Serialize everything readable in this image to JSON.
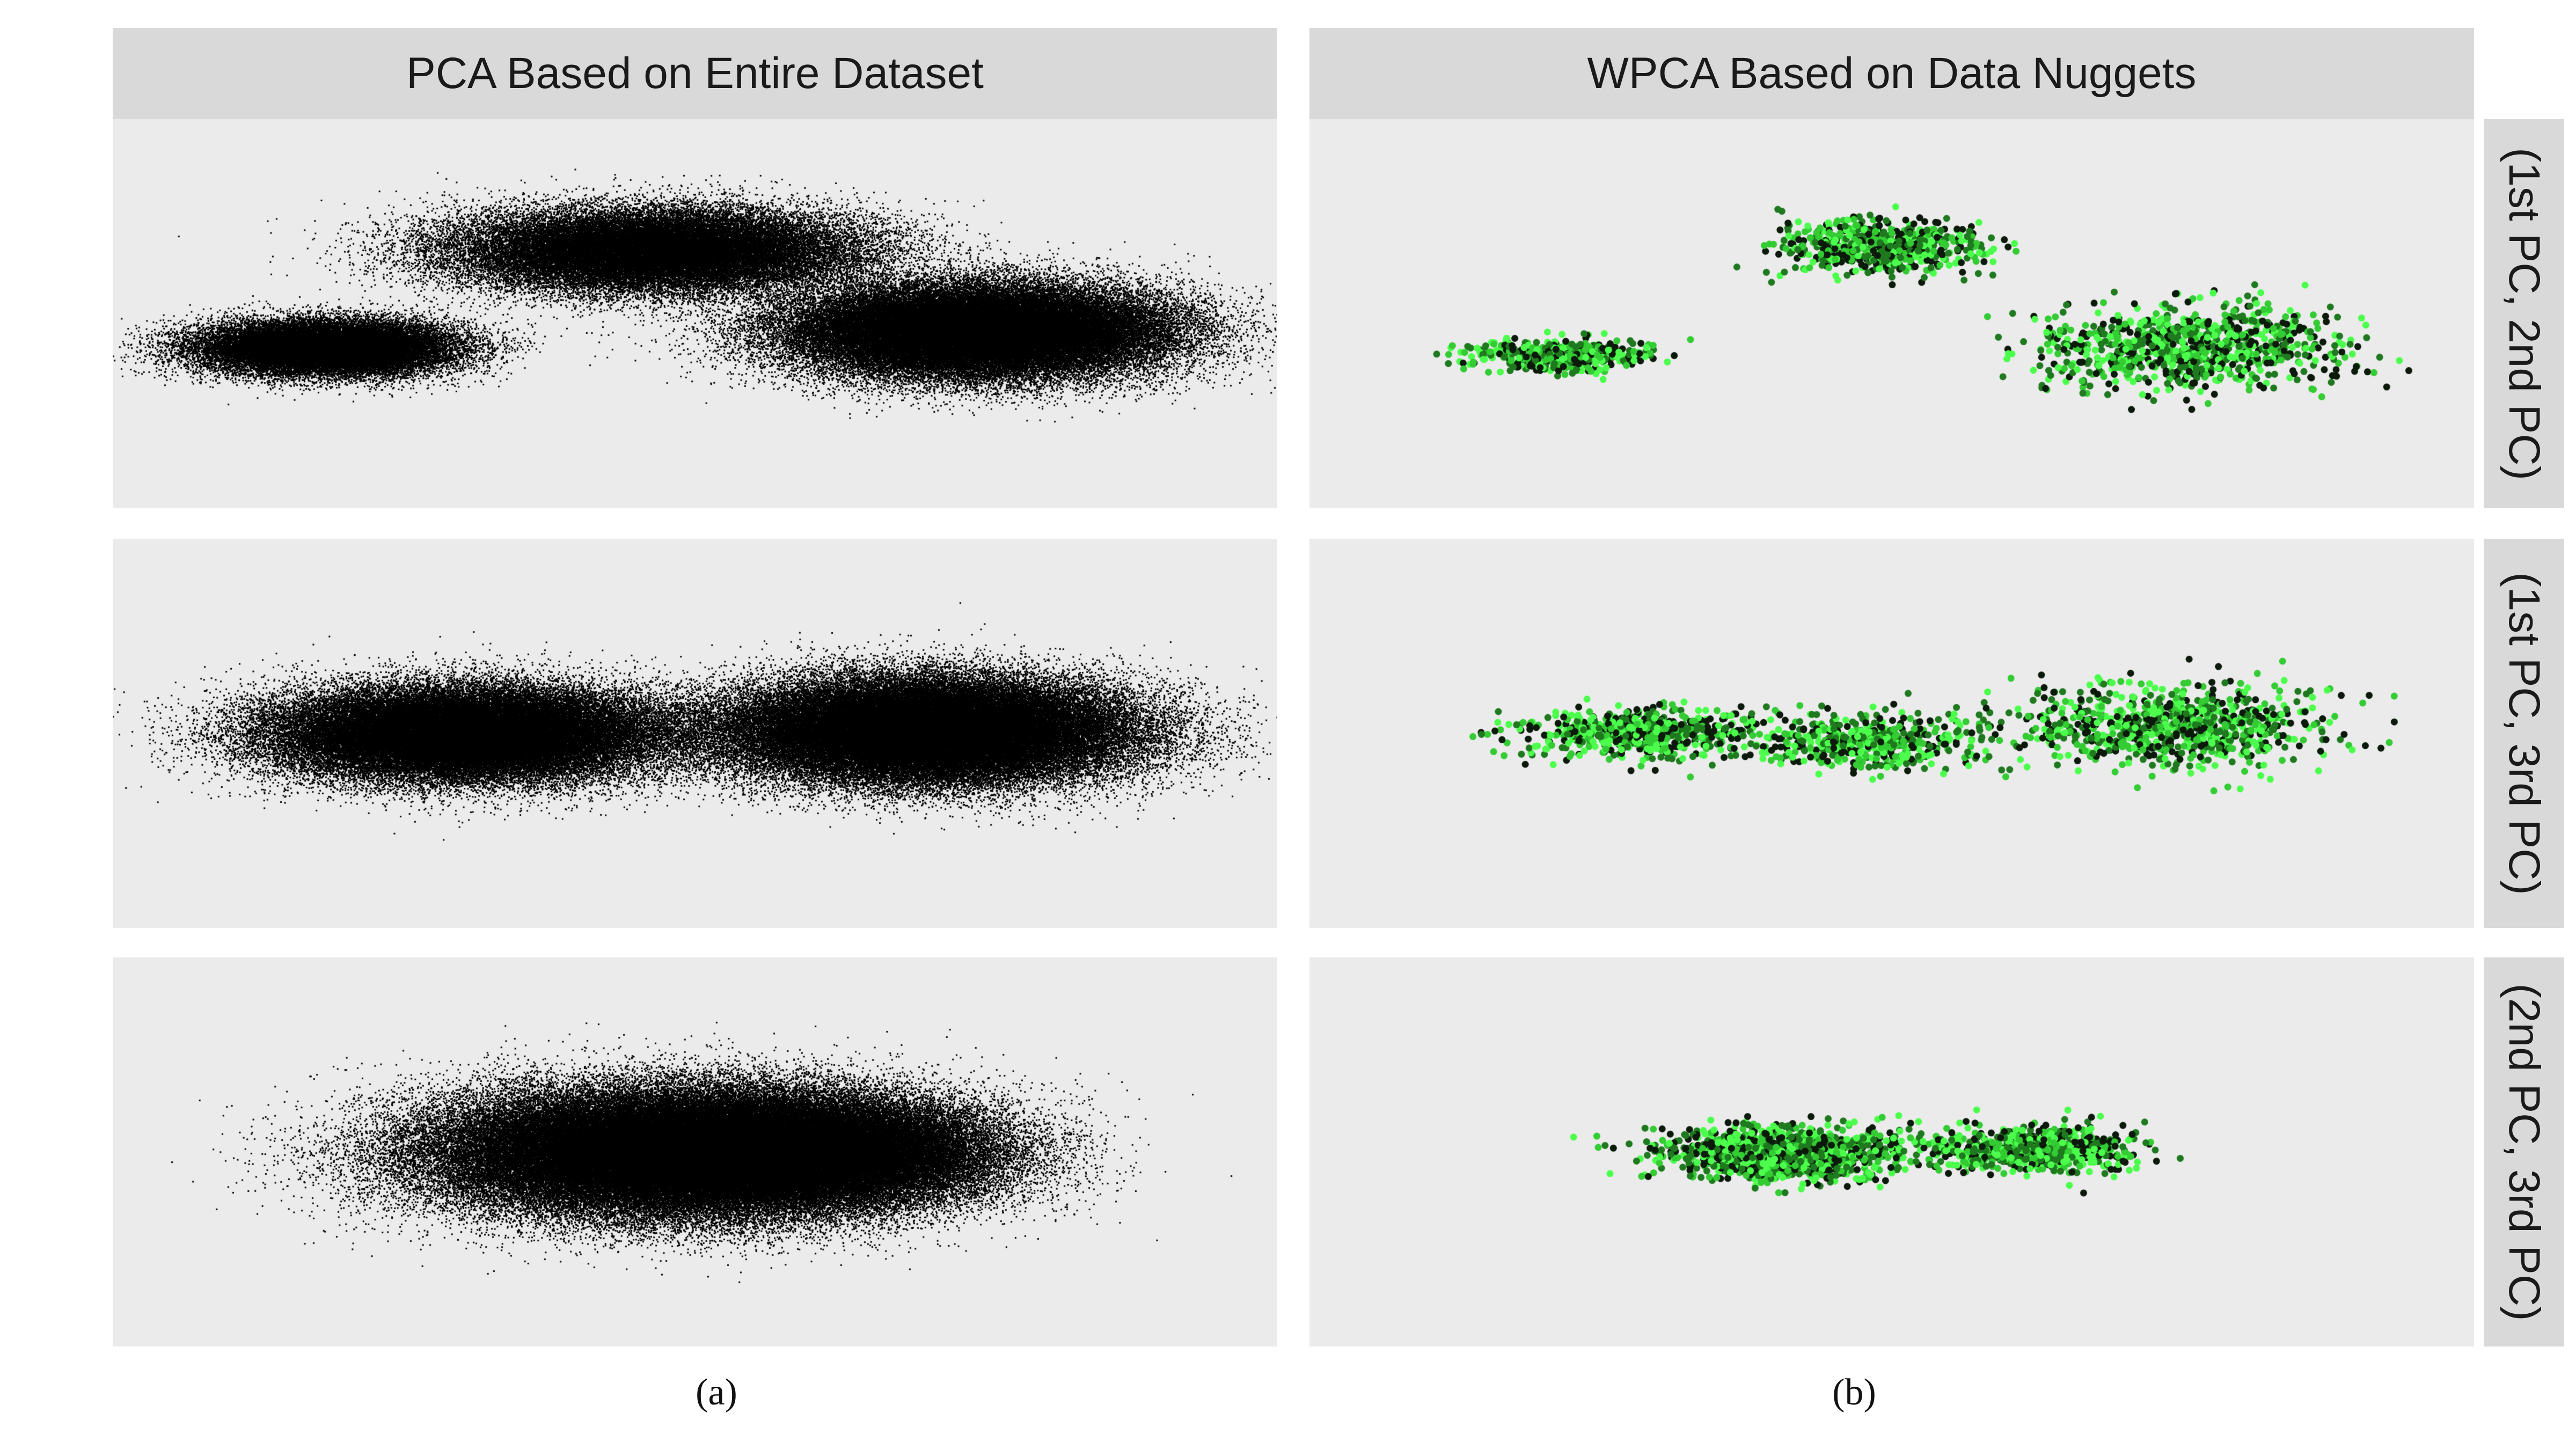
{
  "figure": {
    "column_titles": [
      "PCA Based on Entire Dataset",
      "WPCA Based on Data Nuggets"
    ],
    "row_labels": [
      "(1st PC, 2nd PC)",
      "(1st PC, 3rd PC)",
      "(2nd PC, 3rd PC)"
    ],
    "captions": [
      "(a)",
      "(b)"
    ]
  },
  "colors": {
    "panel_bg": "#ebebeb",
    "strip_bg": "#d9d9d9",
    "full_data_points": "#000000",
    "nugget_gradient": [
      "#0b1a0b",
      "#1f7a1f",
      "#33cc33",
      "#4cff4c"
    ]
  },
  "chart_data": {
    "type": "scatter",
    "layout": "faceted 3 x 2 grid (rows = PC pairs, columns = method)",
    "axes": "unlabeled, no ticks",
    "grid": "off",
    "legend": "none",
    "facets": [
      {
        "row": "(1st PC, 2nd PC)",
        "column": "PCA Based on Entire Dataset",
        "point_color": "#000000",
        "points": "dense (full dataset)",
        "clusters": [
          {
            "center": [
              -0.72,
              -0.2
            ],
            "spread": [
              0.2,
              0.13
            ],
            "weight": 0.22
          },
          {
            "center": [
              -0.08,
              0.38
            ],
            "spread": [
              0.32,
              0.2
            ],
            "weight": 0.3
          },
          {
            "center": [
              0.55,
              -0.1
            ],
            "spread": [
              0.3,
              0.22
            ],
            "weight": 0.48
          }
        ]
      },
      {
        "row": "(1st PC, 2nd PC)",
        "column": "WPCA Based on Data Nuggets",
        "point_color": "#000000 to #4cff4c",
        "points": "about 2000 data nuggets",
        "clusters": [
          {
            "center": [
              -0.65,
              -0.25
            ],
            "spread": [
              0.14,
              0.08
            ],
            "weight": 0.25
          },
          {
            "center": [
              -0.02,
              0.4
            ],
            "spread": [
              0.17,
              0.13
            ],
            "weight": 0.3
          },
          {
            "center": [
              0.58,
              -0.2
            ],
            "spread": [
              0.25,
              0.22
            ],
            "weight": 0.45
          }
        ]
      },
      {
        "row": "(1st PC, 3rd PC)",
        "column": "PCA Based on Entire Dataset",
        "point_color": "#000000",
        "points": "dense (full dataset)",
        "clusters": [
          {
            "center": [
              -0.45,
              0.0
            ],
            "spread": [
              0.3,
              0.22
            ],
            "weight": 0.45
          },
          {
            "center": [
              0.45,
              0.02
            ],
            "spread": [
              0.32,
              0.25
            ],
            "weight": 0.55
          }
        ]
      },
      {
        "row": "(1st PC, 3rd PC)",
        "column": "WPCA Based on Data Nuggets",
        "point_color": "#000000 to #4cff4c",
        "points": "about 2000 data nuggets",
        "clusters": [
          {
            "center": [
              -0.5,
              0.0
            ],
            "spread": [
              0.2,
              0.12
            ],
            "weight": 0.3
          },
          {
            "center": [
              -0.05,
              -0.05
            ],
            "spread": [
              0.18,
              0.14
            ],
            "weight": 0.25
          },
          {
            "center": [
              0.55,
              0.05
            ],
            "spread": [
              0.25,
              0.2
            ],
            "weight": 0.45
          }
        ]
      },
      {
        "row": "(2nd PC, 3rd PC)",
        "column": "PCA Based on Entire Dataset",
        "point_color": "#000000",
        "points": "dense (full dataset)",
        "clusters": [
          {
            "center": [
              -0.05,
              0.0
            ],
            "spread": [
              0.38,
              0.3
            ],
            "weight": 0.7
          },
          {
            "center": [
              0.25,
              0.0
            ],
            "spread": [
              0.28,
              0.26
            ],
            "weight": 0.3
          }
        ]
      },
      {
        "row": "(2nd PC, 3rd PC)",
        "column": "WPCA Based on Data Nuggets",
        "point_color": "#000000 to #4cff4c",
        "points": "about 2000 data nuggets",
        "clusters": [
          {
            "center": [
              -0.2,
              0.0
            ],
            "spread": [
              0.2,
              0.13
            ],
            "weight": 0.6
          },
          {
            "center": [
              0.28,
              0.02
            ],
            "spread": [
              0.16,
              0.11
            ],
            "weight": 0.4
          }
        ]
      }
    ]
  }
}
